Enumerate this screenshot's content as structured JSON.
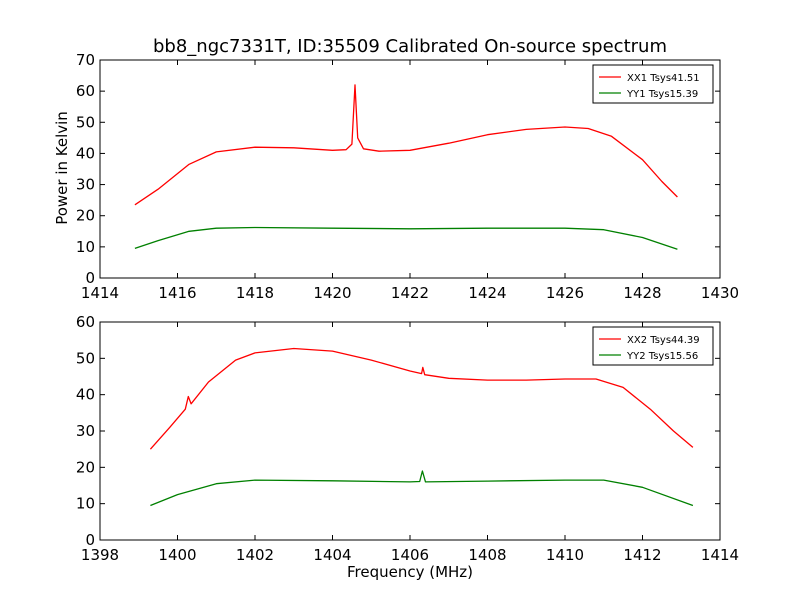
{
  "chart_data": [
    {
      "type": "line",
      "title": "bb8_ngc7331T, ID:35509 Calibrated On-source spectrum",
      "xlabel": "",
      "ylabel": "Power in Kelvin",
      "xlim": [
        1414,
        1430
      ],
      "ylim": [
        0,
        70
      ],
      "xticks": [
        1414,
        1416,
        1418,
        1420,
        1422,
        1424,
        1426,
        1428,
        1430
      ],
      "yticks": [
        0,
        10,
        20,
        30,
        40,
        50,
        60,
        70
      ],
      "grid": false,
      "legend": "top-right",
      "series": [
        {
          "name": "XX1 Tsys41.51",
          "color": "#ff0000",
          "points": [
            [
              1414.9,
              23.5
            ],
            [
              1415.5,
              28.5
            ],
            [
              1416.3,
              36.5
            ],
            [
              1417.0,
              40.5
            ],
            [
              1418.0,
              42.0
            ],
            [
              1419.0,
              41.8
            ],
            [
              1420.0,
              41.0
            ],
            [
              1420.35,
              41.2
            ],
            [
              1420.5,
              43.0
            ],
            [
              1420.58,
              62.0
            ],
            [
              1420.65,
              45.0
            ],
            [
              1420.8,
              41.5
            ],
            [
              1421.2,
              40.7
            ],
            [
              1422.0,
              41.0
            ],
            [
              1423.0,
              43.3
            ],
            [
              1424.0,
              46.0
            ],
            [
              1425.0,
              47.7
            ],
            [
              1426.0,
              48.5
            ],
            [
              1426.6,
              48.0
            ],
            [
              1427.2,
              45.5
            ],
            [
              1428.0,
              38.0
            ],
            [
              1428.5,
              31.0
            ],
            [
              1428.9,
              26.0
            ]
          ]
        },
        {
          "name": "YY1 Tsys15.39",
          "color": "#008000",
          "points": [
            [
              1414.9,
              9.5
            ],
            [
              1415.5,
              12.0
            ],
            [
              1416.3,
              15.0
            ],
            [
              1417.0,
              16.0
            ],
            [
              1418.0,
              16.2
            ],
            [
              1420.0,
              16.0
            ],
            [
              1422.0,
              15.8
            ],
            [
              1424.0,
              16.0
            ],
            [
              1426.0,
              16.0
            ],
            [
              1427.0,
              15.5
            ],
            [
              1428.0,
              13.0
            ],
            [
              1428.9,
              9.2
            ]
          ]
        }
      ]
    },
    {
      "type": "line",
      "title": "",
      "xlabel": "Frequency (MHz)",
      "ylabel": "",
      "xlim": [
        1398,
        1414
      ],
      "ylim": [
        0,
        60
      ],
      "xticks": [
        1398,
        1400,
        1402,
        1404,
        1406,
        1408,
        1410,
        1412,
        1414
      ],
      "yticks": [
        0,
        10,
        20,
        30,
        40,
        50,
        60
      ],
      "grid": false,
      "legend": "top-right",
      "series": [
        {
          "name": "XX2 Tsys44.39",
          "color": "#ff0000",
          "points": [
            [
              1399.3,
              25.0
            ],
            [
              1399.8,
              31.0
            ],
            [
              1400.2,
              36.0
            ],
            [
              1400.28,
              39.5
            ],
            [
              1400.35,
              37.5
            ],
            [
              1400.8,
              43.5
            ],
            [
              1401.5,
              49.5
            ],
            [
              1402.0,
              51.5
            ],
            [
              1403.0,
              52.7
            ],
            [
              1404.0,
              52.0
            ],
            [
              1405.0,
              49.5
            ],
            [
              1406.0,
              46.5
            ],
            [
              1406.3,
              45.8
            ],
            [
              1406.33,
              47.5
            ],
            [
              1406.38,
              45.5
            ],
            [
              1407.0,
              44.5
            ],
            [
              1408.0,
              44.0
            ],
            [
              1409.0,
              44.0
            ],
            [
              1410.0,
              44.3
            ],
            [
              1410.8,
              44.3
            ],
            [
              1411.5,
              42.0
            ],
            [
              1412.2,
              36.0
            ],
            [
              1412.8,
              30.0
            ],
            [
              1413.3,
              25.5
            ]
          ]
        },
        {
          "name": "YY2 Tsys15.56",
          "color": "#008000",
          "points": [
            [
              1399.3,
              9.5
            ],
            [
              1400.0,
              12.5
            ],
            [
              1401.0,
              15.5
            ],
            [
              1402.0,
              16.5
            ],
            [
              1404.0,
              16.3
            ],
            [
              1406.0,
              16.0
            ],
            [
              1406.25,
              16.1
            ],
            [
              1406.32,
              19.0
            ],
            [
              1406.4,
              16.0
            ],
            [
              1408.0,
              16.2
            ],
            [
              1410.0,
              16.5
            ],
            [
              1411.0,
              16.5
            ],
            [
              1412.0,
              14.5
            ],
            [
              1413.3,
              9.5
            ]
          ]
        }
      ]
    }
  ]
}
